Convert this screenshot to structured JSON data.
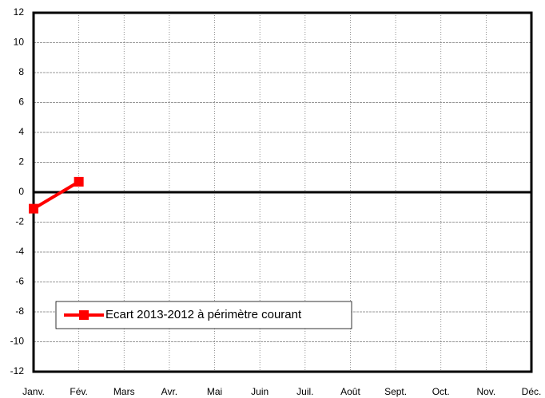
{
  "chart_data": {
    "type": "line",
    "categories": [
      "Janv.",
      "Fév.",
      "Mars",
      "Avr.",
      "Mai",
      "Juin",
      "Juil.",
      "Août",
      "Sept.",
      "Oct.",
      "Nov.",
      "Déc."
    ],
    "series": [
      {
        "name": "Ecart 2013-2012 à périmètre courant",
        "color": "#ff0000",
        "values": [
          -1.1,
          0.7,
          null,
          null,
          null,
          null,
          null,
          null,
          null,
          null,
          null,
          null
        ]
      }
    ],
    "ylim": [
      -12,
      12
    ],
    "yticks": [
      -12,
      -10,
      -8,
      -6,
      -4,
      -2,
      0,
      2,
      4,
      6,
      8,
      10,
      12
    ],
    "grid": true,
    "legend": "lower left"
  }
}
